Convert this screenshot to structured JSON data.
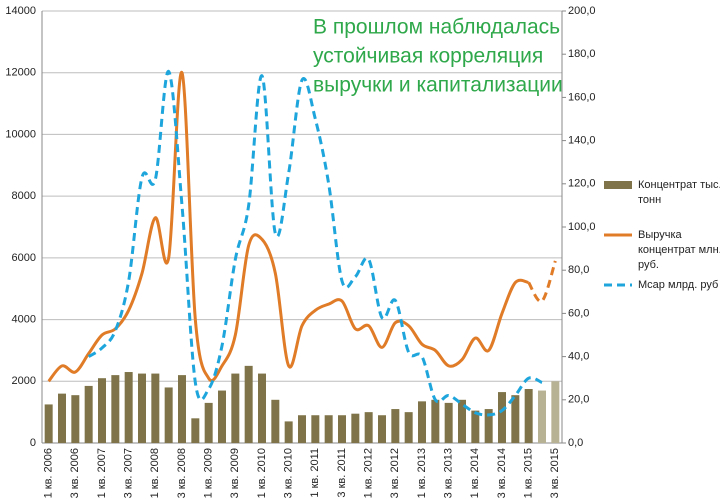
{
  "chart_data": {
    "type": "combo",
    "annotation": [
      "В прошлом наблюдалась",
      "устойчивая корреляция",
      "выручки и капитализации"
    ],
    "annotation_color": "#2ea84a",
    "categories": [
      "1 кв. 2006",
      null,
      "3 кв. 2006",
      null,
      "1 кв. 2007",
      null,
      "3 кв. 2007",
      null,
      "1 кв. 2008",
      null,
      "3 кв. 2008",
      null,
      "1 кв. 2009",
      null,
      "3 кв. 2009",
      null,
      "1 кв. 2010",
      null,
      "3 кв. 2010",
      null,
      "1 кв. 2011",
      null,
      "3 кв. 2011",
      null,
      "1 кв. 2012",
      null,
      "3 кв. 2012",
      null,
      "1 кв. 2013",
      null,
      "3 кв. 2013",
      null,
      "1 кв. 2014",
      null,
      "3 кв. 2014",
      null,
      "1 кв. 2015",
      null,
      "3 кв. 2015"
    ],
    "ylim": [
      0,
      14000
    ],
    "yticks": [
      0,
      2000,
      4000,
      6000,
      8000,
      10000,
      12000,
      14000
    ],
    "y2lim": [
      0,
      200
    ],
    "y2ticks": [
      {
        "value": 0,
        "label": "0,0"
      },
      {
        "value": 20,
        "label": "20,0"
      },
      {
        "value": 40,
        "label": "40,0"
      },
      {
        "value": 60,
        "label": "60,0"
      },
      {
        "value": 80,
        "label": "80,0"
      },
      {
        "value": 100,
        "label": "100,0"
      },
      {
        "value": 120,
        "label": "120,0"
      },
      {
        "value": 140,
        "label": "140,0"
      },
      {
        "value": 160,
        "label": "160,0"
      },
      {
        "value": 180,
        "label": "180,0"
      },
      {
        "value": 200,
        "label": "200,0"
      }
    ],
    "grid": true,
    "series": [
      {
        "name": "Концентрат тыс. тонн",
        "kind": "bar",
        "color": "#7f7449",
        "colors": [
          "#7f7449",
          "#7f7449",
          "#7f7449",
          "#7f7449",
          "#7f7449",
          "#7f7449",
          "#7f7449",
          "#7f7449",
          "#7f7449",
          "#7f7449",
          "#7f7449",
          "#7f7449",
          "#7f7449",
          "#7f7449",
          "#7f7449",
          "#7f7449",
          "#7f7449",
          "#7f7449",
          "#7f7449",
          "#7f7449",
          "#7f7449",
          "#7f7449",
          "#7f7449",
          "#7f7449",
          "#7f7449",
          "#7f7449",
          "#7f7449",
          "#7f7449",
          "#7f7449",
          "#7f7449",
          "#7f7449",
          "#7f7449",
          "#7f7449",
          "#7f7449",
          "#7f7449",
          "#7f7449",
          "#7f7449",
          "#b8b294",
          "#b8b294"
        ],
        "values": [
          1250,
          1600,
          1550,
          1850,
          2100,
          2200,
          2300,
          2250,
          2250,
          1800,
          2200,
          800,
          1300,
          1700,
          2250,
          2500,
          2250,
          1400,
          700,
          900,
          900,
          900,
          900,
          950,
          1000,
          900,
          1100,
          1000,
          1350,
          1400,
          1300,
          1400,
          1050,
          1100,
          1650,
          1550,
          1750,
          1700,
          2000
        ]
      },
      {
        "name": "Выручка концентрат млн. руб.",
        "kind": "line",
        "color": "#e07b28",
        "dashed_from": 36,
        "values": [
          2000,
          2500,
          2300,
          2900,
          3500,
          3700,
          4300,
          5500,
          7300,
          6000,
          12000,
          4000,
          2100,
          2500,
          3500,
          6400,
          6600,
          5500,
          2500,
          3800,
          4300,
          4500,
          4600,
          3700,
          3800,
          3100,
          3900,
          3800,
          3200,
          3000,
          2500,
          2700,
          3400,
          3000,
          4200,
          5200,
          5200,
          4600,
          5900
        ]
      },
      {
        "name": "Mcap млрд. руб",
        "kind": "line",
        "axis": "y2",
        "color": "#1ea6dc",
        "dashed": true,
        "values": [
          null,
          null,
          null,
          40,
          44,
          52,
          75,
          123,
          122,
          172,
          110,
          28,
          25,
          45,
          85,
          110,
          170,
          97,
          125,
          168,
          150,
          120,
          75,
          77,
          85,
          58,
          66,
          42,
          40,
          20,
          22,
          18,
          14,
          13,
          15,
          22,
          30,
          28,
          null
        ]
      }
    ]
  }
}
